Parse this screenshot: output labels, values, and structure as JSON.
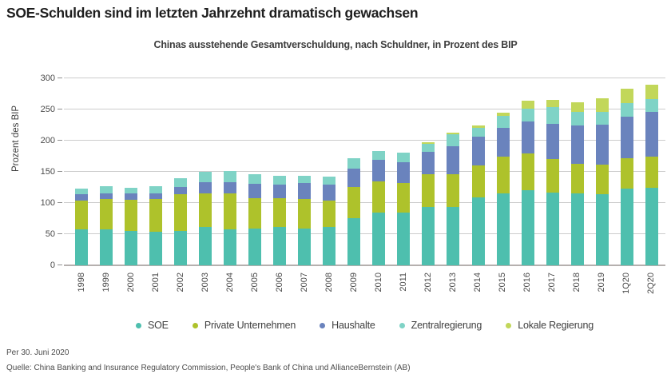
{
  "title": "SOE-Schulden sind im letzten Jahrzehnt dramatisch gewachsen",
  "subtitle": "Chinas ausstehende Gesamtverschuldung, nach Schuldner, in Prozent des BIP",
  "footer": {
    "as_of": "Per 30. Juni 2020",
    "source": "Quelle: China Banking and Insurance Regulatory Commission, People's Bank of China und AllianceBernstein (AB)"
  },
  "colors": {
    "gridline": "#cccccc",
    "axis_line": "#b5b0ae",
    "tick_mark": "#8f8f8f",
    "tick_label": "#4a4a4a",
    "title_text": "#1e1e1e",
    "subtitle_text": "#3d3d3d",
    "footer_text": "#4b4b4b"
  },
  "chart_data": {
    "type": "bar",
    "stacked": true,
    "title": "Chinas ausstehende Gesamtverschuldung, nach Schuldner, in Prozent des BIP",
    "xlabel": "",
    "ylabel": "Prozent des BIP",
    "ylim": [
      0,
      300
    ],
    "yticks": [
      0,
      50,
      100,
      150,
      200,
      250,
      300
    ],
    "grid": true,
    "legend_position": "bottom",
    "categories": [
      "1998",
      "1999",
      "2000",
      "2001",
      "2002",
      "2003",
      "2004",
      "2005",
      "2006",
      "2007",
      "2008",
      "2009",
      "2010",
      "2011",
      "2012",
      "2013",
      "2014",
      "2015",
      "2016",
      "2017",
      "2018",
      "2019",
      "1Q20",
      "2Q20"
    ],
    "series": [
      {
        "name": "SOE",
        "color": "#4ebfae",
        "values": [
          58,
          58,
          55,
          54,
          55,
          61,
          58,
          59,
          61,
          59,
          62,
          76,
          84,
          84,
          94,
          94,
          109,
          116,
          121,
          117,
          116,
          114,
          123,
          125
        ]
      },
      {
        "name": "Private Unternehmen",
        "color": "#aec22b",
        "values": [
          46,
          48,
          50,
          53,
          59,
          54,
          57,
          49,
          47,
          47,
          42,
          50,
          51,
          48,
          52,
          52,
          51,
          58,
          58,
          54,
          47,
          48,
          49,
          49
        ]
      },
      {
        "name": "Haushalte",
        "color": "#6a83bd",
        "values": [
          10,
          10,
          10,
          9,
          12,
          19,
          19,
          23,
          22,
          26,
          26,
          29,
          34,
          34,
          36,
          45,
          46,
          46,
          52,
          56,
          61,
          64,
          66,
          72
        ]
      },
      {
        "name": "Zentralregierung",
        "color": "#7fd3c6",
        "values": [
          9,
          11,
          10,
          11,
          14,
          16,
          17,
          15,
          13,
          12,
          12,
          17,
          15,
          15,
          13,
          19,
          15,
          20,
          20,
          27,
          22,
          20,
          22,
          21
        ]
      },
      {
        "name": "Lokale Regierung",
        "color": "#c2d75a",
        "values": [
          0,
          0,
          0,
          0,
          0,
          0,
          0,
          0,
          0,
          0,
          0,
          0,
          0,
          0,
          3,
          3,
          4,
          5,
          13,
          12,
          16,
          22,
          23,
          23
        ]
      }
    ],
    "totals": [
      123,
      127,
      125,
      127,
      140,
      150,
      151,
      146,
      143,
      144,
      142,
      172,
      184,
      181,
      198,
      213,
      225,
      245,
      264,
      266,
      262,
      268,
      283,
      290
    ]
  }
}
